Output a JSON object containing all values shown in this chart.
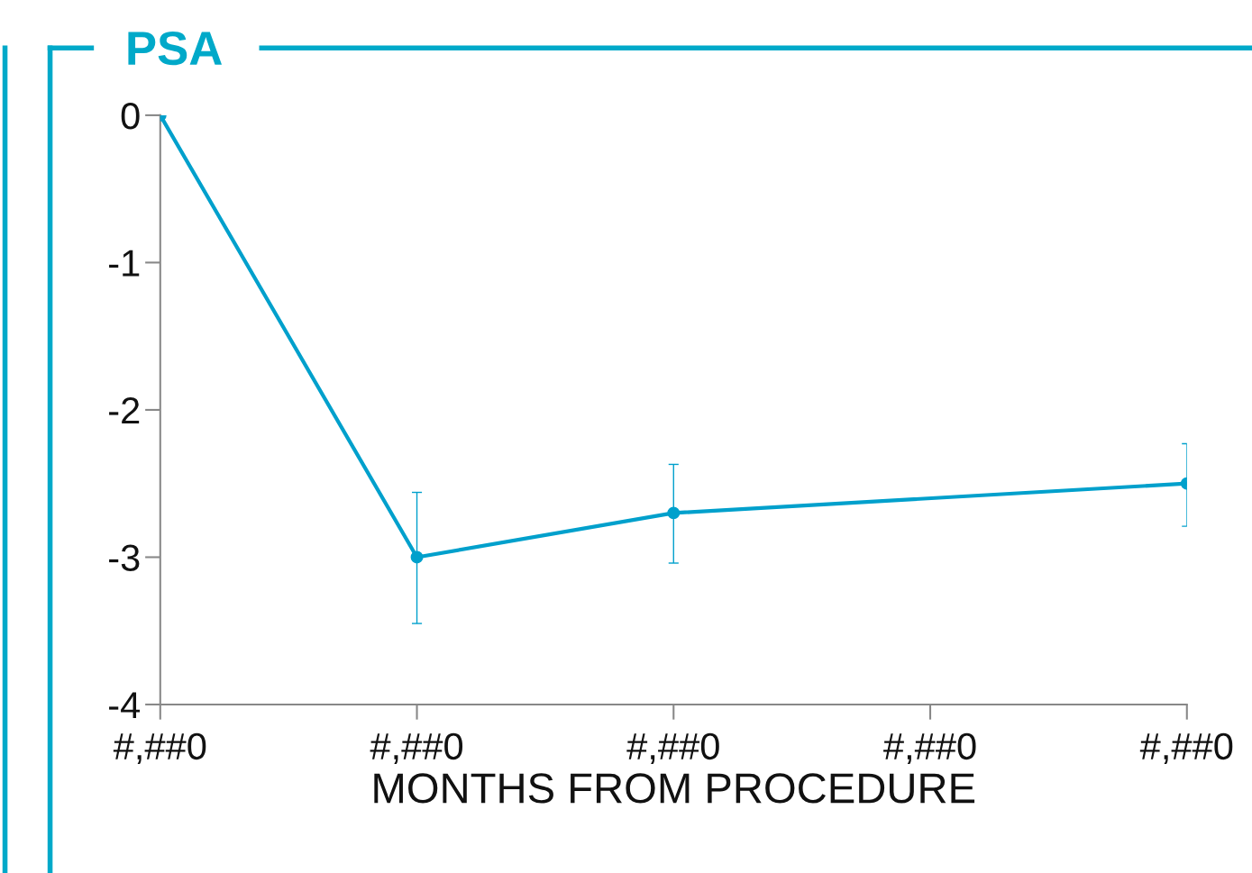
{
  "chart_data": {
    "type": "line",
    "title": "PSA",
    "xlabel": "MONTHS FROM PROCEDURE",
    "categories": [
      "#,##0",
      "#,##0",
      "#,##0",
      "#,##0",
      "#,##0"
    ],
    "series": [
      {
        "color": "#00a0cc",
        "values": [
          0,
          -3.0,
          -2.7,
          null,
          -2.5
        ],
        "errors": [
          null,
          [
            -3.45,
            -2.56
          ],
          [
            -3.04,
            -2.37
          ],
          null,
          [
            -2.79,
            -2.23
          ]
        ]
      }
    ],
    "ylim": [
      -4,
      0
    ],
    "yticks": [
      0,
      -1,
      -2,
      -3,
      -4
    ],
    "marker": "circle",
    "line_style": "solid"
  }
}
